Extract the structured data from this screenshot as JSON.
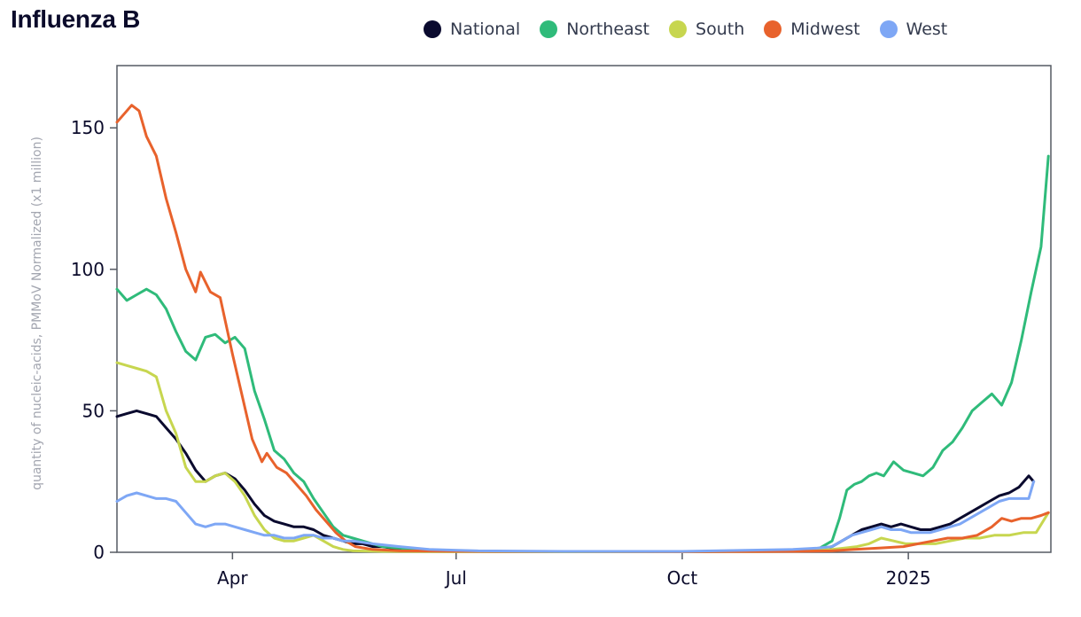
{
  "chart_data": {
    "type": "line",
    "title": "Influenza B",
    "ylabel": "quantity of nucleic-acids, PMMoV Normalized (x1 million)",
    "xlabel": "",
    "ylim": [
      0,
      172
    ],
    "xlim": [
      "2024-02-14",
      "2025-02-28"
    ],
    "yticks": [
      0,
      50,
      100,
      150
    ],
    "xticks": [
      {
        "label": "Apr",
        "date": "2024-04-01"
      },
      {
        "label": "Jul",
        "date": "2024-07-01"
      },
      {
        "label": "Oct",
        "date": "2024-10-01"
      },
      {
        "label": "2025",
        "date": "2025-01-01"
      }
    ],
    "legend_position": "top-right",
    "series": [
      {
        "name": "National",
        "color": "#0a0a2e",
        "points": [
          [
            "2024-02-14",
            48
          ],
          [
            "2024-02-18",
            49
          ],
          [
            "2024-02-22",
            50
          ],
          [
            "2024-02-26",
            49
          ],
          [
            "2024-03-01",
            48
          ],
          [
            "2024-03-05",
            44
          ],
          [
            "2024-03-09",
            40
          ],
          [
            "2024-03-13",
            35
          ],
          [
            "2024-03-17",
            29
          ],
          [
            "2024-03-21",
            25
          ],
          [
            "2024-03-25",
            27
          ],
          [
            "2024-03-29",
            28
          ],
          [
            "2024-04-02",
            26
          ],
          [
            "2024-04-06",
            22
          ],
          [
            "2024-04-10",
            17
          ],
          [
            "2024-04-14",
            13
          ],
          [
            "2024-04-18",
            11
          ],
          [
            "2024-04-22",
            10
          ],
          [
            "2024-04-26",
            9
          ],
          [
            "2024-04-30",
            9
          ],
          [
            "2024-05-04",
            8
          ],
          [
            "2024-05-08",
            6
          ],
          [
            "2024-05-12",
            5
          ],
          [
            "2024-05-16",
            4
          ],
          [
            "2024-05-20",
            3
          ],
          [
            "2024-05-24",
            3
          ],
          [
            "2024-05-28",
            2
          ],
          [
            "2024-06-01",
            2
          ],
          [
            "2024-06-08",
            1
          ],
          [
            "2024-06-15",
            1
          ],
          [
            "2024-06-25",
            0.5
          ],
          [
            "2024-07-10",
            0.3
          ],
          [
            "2024-08-15",
            0.2
          ],
          [
            "2024-10-01",
            0.2
          ],
          [
            "2024-11-15",
            0.5
          ],
          [
            "2024-11-25",
            1
          ],
          [
            "2024-12-01",
            2
          ],
          [
            "2024-12-05",
            4
          ],
          [
            "2024-12-09",
            6
          ],
          [
            "2024-12-13",
            8
          ],
          [
            "2024-12-17",
            9
          ],
          [
            "2024-12-21",
            10
          ],
          [
            "2024-12-25",
            9
          ],
          [
            "2024-12-29",
            10
          ],
          [
            "2025-01-02",
            9
          ],
          [
            "2025-01-06",
            8
          ],
          [
            "2025-01-10",
            8
          ],
          [
            "2025-01-14",
            9
          ],
          [
            "2025-01-18",
            10
          ],
          [
            "2025-01-22",
            12
          ],
          [
            "2025-01-26",
            14
          ],
          [
            "2025-01-30",
            16
          ],
          [
            "2025-02-03",
            18
          ],
          [
            "2025-02-07",
            20
          ],
          [
            "2025-02-11",
            21
          ],
          [
            "2025-02-15",
            23
          ],
          [
            "2025-02-19",
            27
          ],
          [
            "2025-02-21",
            25
          ]
        ]
      },
      {
        "name": "Northeast",
        "color": "#2fbb7a",
        "points": [
          [
            "2024-02-14",
            93
          ],
          [
            "2024-02-18",
            89
          ],
          [
            "2024-02-22",
            91
          ],
          [
            "2024-02-26",
            93
          ],
          [
            "2024-03-01",
            91
          ],
          [
            "2024-03-05",
            86
          ],
          [
            "2024-03-09",
            78
          ],
          [
            "2024-03-13",
            71
          ],
          [
            "2024-03-17",
            68
          ],
          [
            "2024-03-21",
            76
          ],
          [
            "2024-03-25",
            77
          ],
          [
            "2024-03-29",
            74
          ],
          [
            "2024-04-02",
            76
          ],
          [
            "2024-04-06",
            72
          ],
          [
            "2024-04-10",
            57
          ],
          [
            "2024-04-14",
            47
          ],
          [
            "2024-04-18",
            36
          ],
          [
            "2024-04-22",
            33
          ],
          [
            "2024-04-26",
            28
          ],
          [
            "2024-04-30",
            25
          ],
          [
            "2024-05-04",
            19
          ],
          [
            "2024-05-08",
            14
          ],
          [
            "2024-05-12",
            9
          ],
          [
            "2024-05-16",
            6
          ],
          [
            "2024-05-20",
            5
          ],
          [
            "2024-05-24",
            4
          ],
          [
            "2024-05-28",
            3
          ],
          [
            "2024-06-01",
            2
          ],
          [
            "2024-06-08",
            1.5
          ],
          [
            "2024-06-15",
            1
          ],
          [
            "2024-06-25",
            0.5
          ],
          [
            "2024-07-10",
            0.3
          ],
          [
            "2024-08-15",
            0.2
          ],
          [
            "2024-10-01",
            0.2
          ],
          [
            "2024-11-15",
            0.5
          ],
          [
            "2024-11-25",
            1
          ],
          [
            "2024-12-01",
            4
          ],
          [
            "2024-12-04",
            12
          ],
          [
            "2024-12-07",
            22
          ],
          [
            "2024-12-10",
            24
          ],
          [
            "2024-12-13",
            25
          ],
          [
            "2024-12-16",
            27
          ],
          [
            "2024-12-19",
            28
          ],
          [
            "2024-12-22",
            27
          ],
          [
            "2024-12-26",
            32
          ],
          [
            "2024-12-30",
            29
          ],
          [
            "2025-01-03",
            28
          ],
          [
            "2025-01-07",
            27
          ],
          [
            "2025-01-11",
            30
          ],
          [
            "2025-01-15",
            36
          ],
          [
            "2025-01-19",
            39
          ],
          [
            "2025-01-23",
            44
          ],
          [
            "2025-01-27",
            50
          ],
          [
            "2025-01-31",
            53
          ],
          [
            "2025-02-04",
            56
          ],
          [
            "2025-02-08",
            52
          ],
          [
            "2025-02-12",
            60
          ],
          [
            "2025-02-16",
            75
          ],
          [
            "2025-02-20",
            92
          ],
          [
            "2025-02-24",
            108
          ],
          [
            "2025-02-27",
            140
          ]
        ]
      },
      {
        "name": "South",
        "color": "#c7d64f",
        "points": [
          [
            "2024-02-14",
            67
          ],
          [
            "2024-02-18",
            66
          ],
          [
            "2024-02-22",
            65
          ],
          [
            "2024-02-26",
            64
          ],
          [
            "2024-03-01",
            62
          ],
          [
            "2024-03-05",
            50
          ],
          [
            "2024-03-09",
            42
          ],
          [
            "2024-03-13",
            30
          ],
          [
            "2024-03-17",
            25
          ],
          [
            "2024-03-21",
            25
          ],
          [
            "2024-03-25",
            27
          ],
          [
            "2024-03-29",
            28
          ],
          [
            "2024-04-02",
            25
          ],
          [
            "2024-04-06",
            20
          ],
          [
            "2024-04-10",
            13
          ],
          [
            "2024-04-14",
            8
          ],
          [
            "2024-04-18",
            5
          ],
          [
            "2024-04-22",
            4
          ],
          [
            "2024-04-26",
            4
          ],
          [
            "2024-04-30",
            5
          ],
          [
            "2024-05-04",
            6
          ],
          [
            "2024-05-08",
            4
          ],
          [
            "2024-05-12",
            2
          ],
          [
            "2024-05-16",
            1
          ],
          [
            "2024-05-20",
            0.5
          ],
          [
            "2024-06-01",
            0.3
          ],
          [
            "2024-07-10",
            0.2
          ],
          [
            "2024-10-01",
            0.2
          ],
          [
            "2024-11-15",
            0.3
          ],
          [
            "2024-12-01",
            1
          ],
          [
            "2024-12-06",
            1.5
          ],
          [
            "2024-12-11",
            2
          ],
          [
            "2024-12-16",
            3
          ],
          [
            "2024-12-21",
            5
          ],
          [
            "2024-12-26",
            4
          ],
          [
            "2024-12-31",
            3
          ],
          [
            "2025-01-06",
            3
          ],
          [
            "2025-01-12",
            3
          ],
          [
            "2025-01-18",
            4
          ],
          [
            "2025-01-24",
            5
          ],
          [
            "2025-01-30",
            5
          ],
          [
            "2025-02-05",
            6
          ],
          [
            "2025-02-11",
            6
          ],
          [
            "2025-02-17",
            7
          ],
          [
            "2025-02-22",
            7
          ],
          [
            "2025-02-27",
            14
          ]
        ]
      },
      {
        "name": "Midwest",
        "color": "#e8622c",
        "points": [
          [
            "2024-02-14",
            152
          ],
          [
            "2024-02-17",
            155
          ],
          [
            "2024-02-20",
            158
          ],
          [
            "2024-02-23",
            156
          ],
          [
            "2024-02-26",
            147
          ],
          [
            "2024-03-01",
            140
          ],
          [
            "2024-03-05",
            125
          ],
          [
            "2024-03-09",
            113
          ],
          [
            "2024-03-13",
            100
          ],
          [
            "2024-03-17",
            92
          ],
          [
            "2024-03-19",
            99
          ],
          [
            "2024-03-23",
            92
          ],
          [
            "2024-03-27",
            90
          ],
          [
            "2024-04-01",
            70
          ],
          [
            "2024-04-05",
            55
          ],
          [
            "2024-04-09",
            40
          ],
          [
            "2024-04-13",
            32
          ],
          [
            "2024-04-15",
            35
          ],
          [
            "2024-04-19",
            30
          ],
          [
            "2024-04-23",
            28
          ],
          [
            "2024-04-27",
            24
          ],
          [
            "2024-05-01",
            20
          ],
          [
            "2024-05-05",
            15
          ],
          [
            "2024-05-09",
            11
          ],
          [
            "2024-05-13",
            7
          ],
          [
            "2024-05-17",
            4
          ],
          [
            "2024-05-21",
            2
          ],
          [
            "2024-05-28",
            1
          ],
          [
            "2024-06-08",
            0.5
          ],
          [
            "2024-07-10",
            0.3
          ],
          [
            "2024-10-01",
            0.2
          ],
          [
            "2024-11-15",
            0.3
          ],
          [
            "2024-12-01",
            0.5
          ],
          [
            "2024-12-10",
            1
          ],
          [
            "2024-12-20",
            1.5
          ],
          [
            "2024-12-30",
            2
          ],
          [
            "2025-01-05",
            3
          ],
          [
            "2025-01-11",
            4
          ],
          [
            "2025-01-17",
            5
          ],
          [
            "2025-01-23",
            5
          ],
          [
            "2025-01-29",
            6
          ],
          [
            "2025-02-04",
            9
          ],
          [
            "2025-02-08",
            12
          ],
          [
            "2025-02-12",
            11
          ],
          [
            "2025-02-16",
            12
          ],
          [
            "2025-02-20",
            12
          ],
          [
            "2025-02-24",
            13
          ],
          [
            "2025-02-27",
            14
          ]
        ]
      },
      {
        "name": "West",
        "color": "#7ea7f5",
        "points": [
          [
            "2024-02-14",
            18
          ],
          [
            "2024-02-18",
            20
          ],
          [
            "2024-02-22",
            21
          ],
          [
            "2024-02-26",
            20
          ],
          [
            "2024-03-01",
            19
          ],
          [
            "2024-03-05",
            19
          ],
          [
            "2024-03-09",
            18
          ],
          [
            "2024-03-13",
            14
          ],
          [
            "2024-03-17",
            10
          ],
          [
            "2024-03-21",
            9
          ],
          [
            "2024-03-25",
            10
          ],
          [
            "2024-03-29",
            10
          ],
          [
            "2024-04-02",
            9
          ],
          [
            "2024-04-06",
            8
          ],
          [
            "2024-04-10",
            7
          ],
          [
            "2024-04-14",
            6
          ],
          [
            "2024-04-18",
            6
          ],
          [
            "2024-04-22",
            5
          ],
          [
            "2024-04-26",
            5
          ],
          [
            "2024-04-30",
            6
          ],
          [
            "2024-05-04",
            6
          ],
          [
            "2024-05-08",
            5
          ],
          [
            "2024-05-12",
            5
          ],
          [
            "2024-05-16",
            4
          ],
          [
            "2024-05-20",
            4
          ],
          [
            "2024-05-28",
            3
          ],
          [
            "2024-06-08",
            2
          ],
          [
            "2024-06-20",
            1
          ],
          [
            "2024-07-10",
            0.5
          ],
          [
            "2024-08-15",
            0.3
          ],
          [
            "2024-10-01",
            0.3
          ],
          [
            "2024-11-15",
            1
          ],
          [
            "2024-11-25",
            1.5
          ],
          [
            "2024-12-01",
            2
          ],
          [
            "2024-12-05",
            4
          ],
          [
            "2024-12-09",
            6
          ],
          [
            "2024-12-13",
            7
          ],
          [
            "2024-12-17",
            8
          ],
          [
            "2024-12-21",
            9
          ],
          [
            "2024-12-25",
            8
          ],
          [
            "2024-12-29",
            8
          ],
          [
            "2025-01-02",
            7
          ],
          [
            "2025-01-06",
            7
          ],
          [
            "2025-01-10",
            7
          ],
          [
            "2025-01-14",
            8
          ],
          [
            "2025-01-18",
            9
          ],
          [
            "2025-01-22",
            10
          ],
          [
            "2025-01-26",
            12
          ],
          [
            "2025-01-30",
            14
          ],
          [
            "2025-02-03",
            16
          ],
          [
            "2025-02-07",
            18
          ],
          [
            "2025-02-11",
            19
          ],
          [
            "2025-02-15",
            19
          ],
          [
            "2025-02-19",
            19
          ],
          [
            "2025-02-21",
            25
          ]
        ]
      }
    ]
  }
}
